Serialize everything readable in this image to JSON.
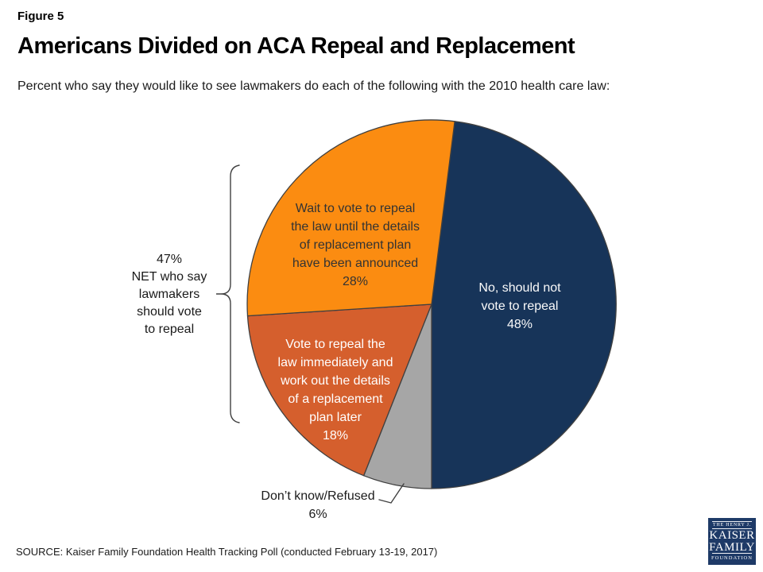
{
  "header": {
    "figure_label": "Figure 5",
    "title": "Americans Divided on ACA Repeal and Replacement",
    "subtitle": "Percent who say they would like to see lawmakers do each of the following with the 2010 health care law:"
  },
  "footer": {
    "source": "SOURCE: Kaiser Family Foundation Health Tracking Poll (conducted February 13-19, 2017)"
  },
  "logo": {
    "line1": "THE HENRY J.",
    "line2": "KAISER",
    "line3": "FAMILY",
    "line4": "FOUNDATION",
    "background": "#1E3A67"
  },
  "chart_data": {
    "type": "pie",
    "title": "Americans Divided on ACA Repeal and Replacement",
    "start_angle_deg": 7.2,
    "legend_position": "labels-on-slices",
    "slices": [
      {
        "name": "No, should not vote to repeal",
        "value": 48,
        "color": "#173459",
        "text_color": "#fafafa",
        "label_lines": "No, should not\nvote to repeal\n48%"
      },
      {
        "name": "Don’t know/Refused",
        "value": 6,
        "color": "#A6A6A6",
        "text_color": "#1a1a1a",
        "label_lines": "Don’t know/Refused\n6%",
        "label_outside": true
      },
      {
        "name": "Vote to repeal the law immediately and work out the details of a replacement plan later",
        "value": 18,
        "color": "#D55F2D",
        "text_color": "#ffffff",
        "label_lines": "Vote to repeal the\nlaw immediately and\nwork out the details\nof a replacement\nplan later\n18%"
      },
      {
        "name": "Wait to vote to repeal the law until the details of replacement plan have been announced",
        "value": 28,
        "color": "#FB8C11",
        "text_color": "#333333",
        "label_lines": "Wait to vote to repeal\nthe law until the details\nof replacement plan\nhave been announced\n28%"
      }
    ],
    "annotations": {
      "net_label": "47%\nNET who say\nlawmakers\nshould vote\nto repeal",
      "net_value": 47
    },
    "stroke_color": "#404040"
  }
}
